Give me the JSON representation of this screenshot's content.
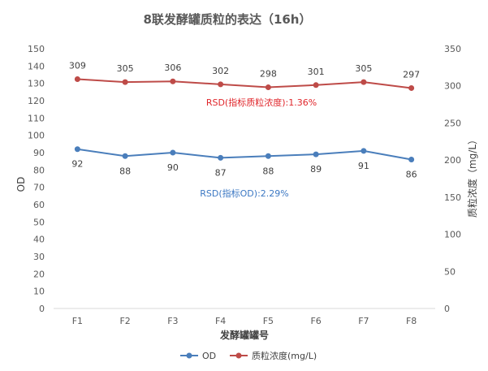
{
  "chart_data": {
    "type": "line",
    "title": "8联发酵罐质粒的表达（16h）",
    "xlabel": "发酵罐罐号",
    "ylabel": "OD",
    "y2label": "质粒浓度（mg/L）",
    "categories": [
      "F1",
      "F2",
      "F3",
      "F4",
      "F5",
      "F6",
      "F7",
      "F8"
    ],
    "ylim": [
      0,
      150
    ],
    "yticks": [
      "0",
      "10",
      "20",
      "30",
      "40",
      "50",
      "60",
      "70",
      "80",
      "90",
      "100",
      "110",
      "120",
      "130",
      "140",
      "150"
    ],
    "y2lim": [
      0,
      350
    ],
    "y2ticks": [
      "0",
      "50",
      "100",
      "150",
      "200",
      "250",
      "300",
      "350"
    ],
    "grid": false,
    "legend": "bottom",
    "series": [
      {
        "name": "OD",
        "axis": "left",
        "color": "#4a7ebb",
        "values": [
          92,
          88,
          90,
          87,
          88,
          89,
          91,
          86
        ]
      },
      {
        "name": "质粒浓度(mg/L)",
        "axis": "right",
        "color": "#be4b48",
        "values": [
          309,
          305,
          306,
          302,
          298,
          301,
          305,
          297
        ]
      }
    ],
    "annotations": [
      {
        "text": "RSD(指标质粒浓度):1.36%",
        "color": "#e0262b"
      },
      {
        "text": "RSD(指标OD):2.29%",
        "color": "#3c78c3"
      }
    ]
  }
}
